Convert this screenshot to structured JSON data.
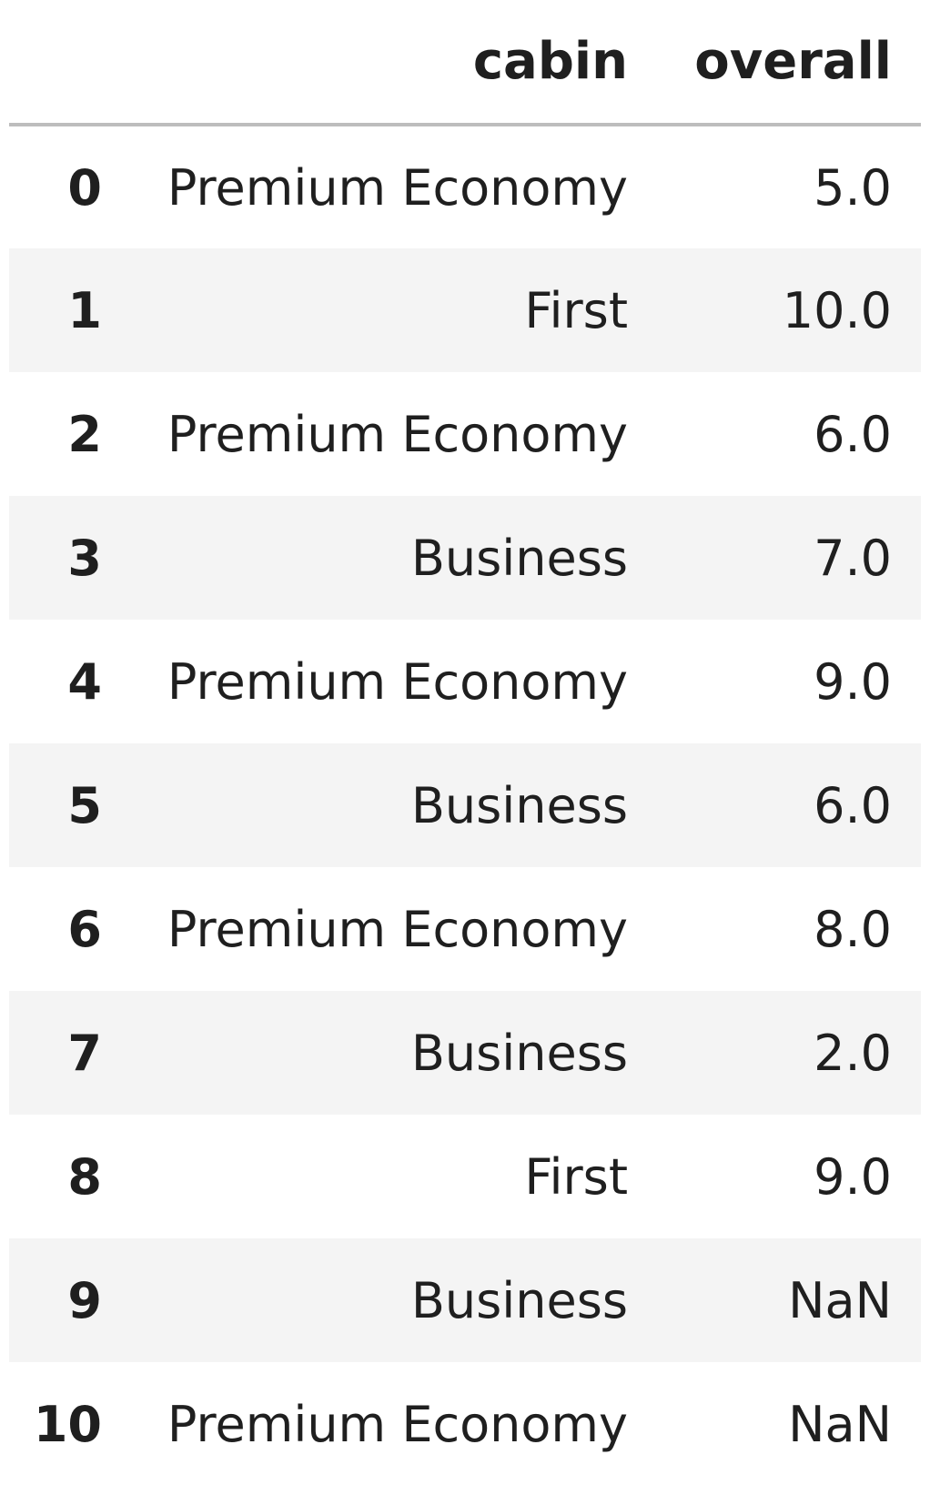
{
  "table": {
    "columns": [
      "cabin",
      "overall"
    ],
    "rows": [
      {
        "index": "0",
        "cabin": "Premium Economy",
        "overall": "5.0"
      },
      {
        "index": "1",
        "cabin": "First",
        "overall": "10.0"
      },
      {
        "index": "2",
        "cabin": "Premium Economy",
        "overall": "6.0"
      },
      {
        "index": "3",
        "cabin": "Business",
        "overall": "7.0"
      },
      {
        "index": "4",
        "cabin": "Premium Economy",
        "overall": "9.0"
      },
      {
        "index": "5",
        "cabin": "Business",
        "overall": "6.0"
      },
      {
        "index": "6",
        "cabin": "Premium Economy",
        "overall": "8.0"
      },
      {
        "index": "7",
        "cabin": "Business",
        "overall": "2.0"
      },
      {
        "index": "8",
        "cabin": "First",
        "overall": "9.0"
      },
      {
        "index": "9",
        "cabin": "Business",
        "overall": "NaN"
      },
      {
        "index": "10",
        "cabin": "Premium Economy",
        "overall": "NaN"
      }
    ]
  },
  "colors": {
    "text": "#1f1f1f",
    "stripe": "#f4f4f4",
    "header_rule": "#bdbdbd",
    "background": "#ffffff"
  }
}
